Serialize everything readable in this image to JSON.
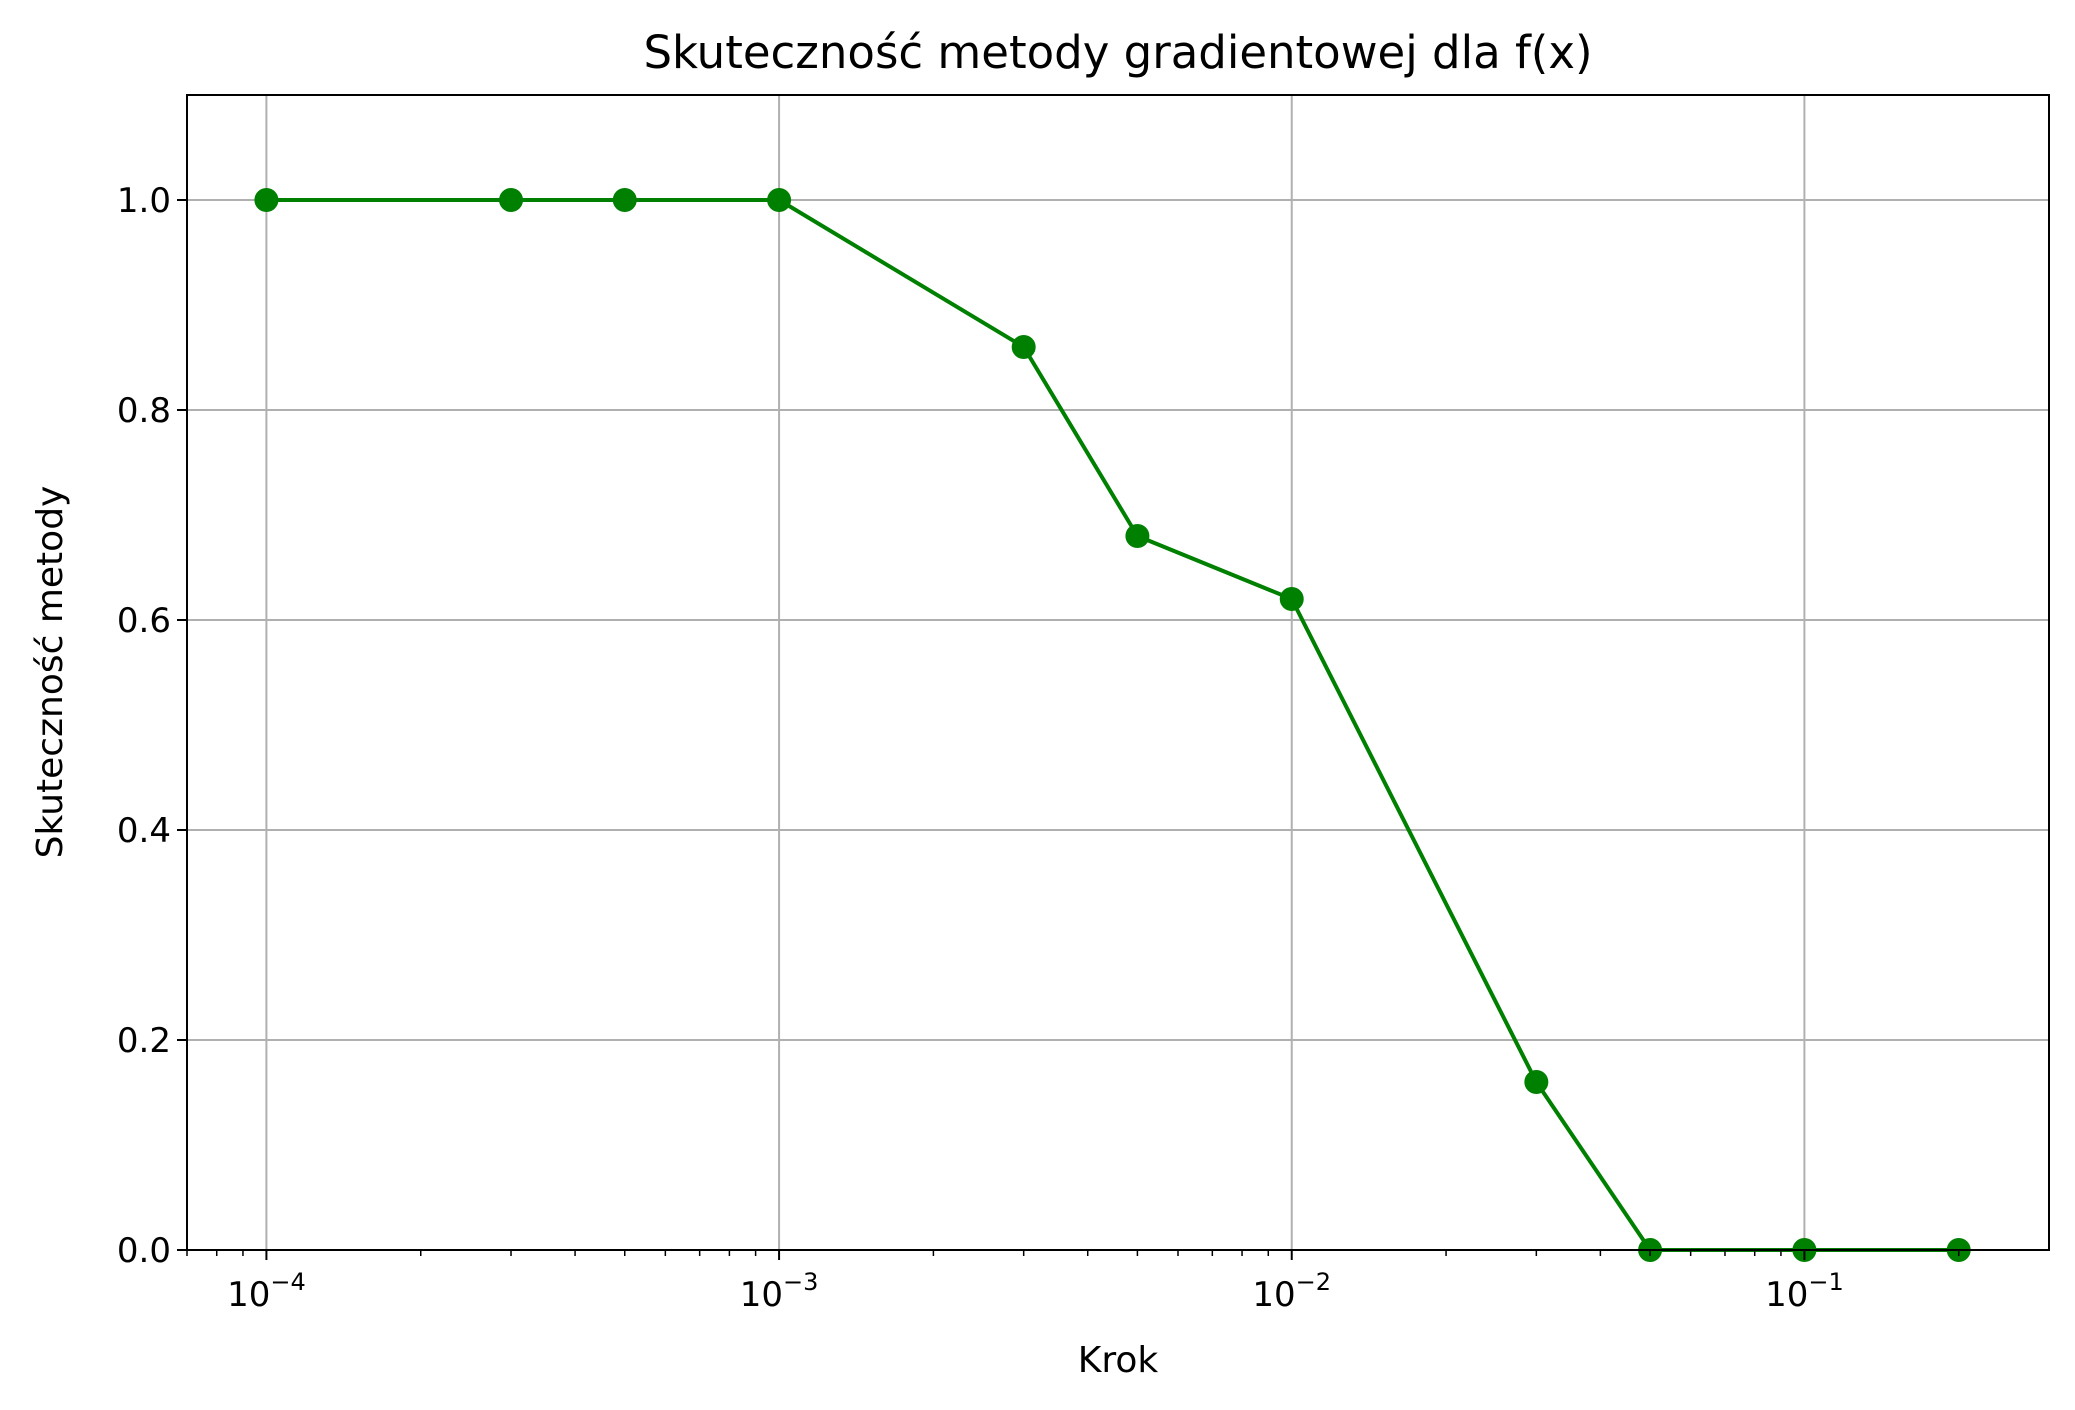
{
  "chart_data": {
    "type": "line",
    "title": "Skuteczność metody gradientowej dla f(x)",
    "xlabel": "Krok",
    "ylabel": "Skuteczność metody",
    "x_scale": "log",
    "xlim": [
      7e-05,
      0.3
    ],
    "ylim": [
      0.0,
      1.1
    ],
    "grid": true,
    "x_major_ticks": [
      {
        "value": 0.0001,
        "base": "10",
        "exp": "−4"
      },
      {
        "value": 0.001,
        "base": "10",
        "exp": "−3"
      },
      {
        "value": 0.01,
        "base": "10",
        "exp": "−2"
      },
      {
        "value": 0.1,
        "base": "10",
        "exp": "−1"
      }
    ],
    "y_ticks": [
      {
        "value": 0.0,
        "label": "0.0"
      },
      {
        "value": 0.2,
        "label": "0.2"
      },
      {
        "value": 0.4,
        "label": "0.4"
      },
      {
        "value": 0.6,
        "label": "0.6"
      },
      {
        "value": 0.8,
        "label": "0.8"
      },
      {
        "value": 1.0,
        "label": "1.0"
      }
    ],
    "series": [
      {
        "color": "#008000",
        "marker": "circle",
        "x": [
          0.0001,
          0.0003,
          0.0005,
          0.001,
          0.003,
          0.005,
          0.01,
          0.03,
          0.05,
          0.1,
          0.2
        ],
        "y": [
          1.0,
          1.0,
          1.0,
          1.0,
          0.86,
          0.68,
          0.62,
          0.16,
          0.0,
          0.0,
          0.0
        ]
      }
    ]
  }
}
